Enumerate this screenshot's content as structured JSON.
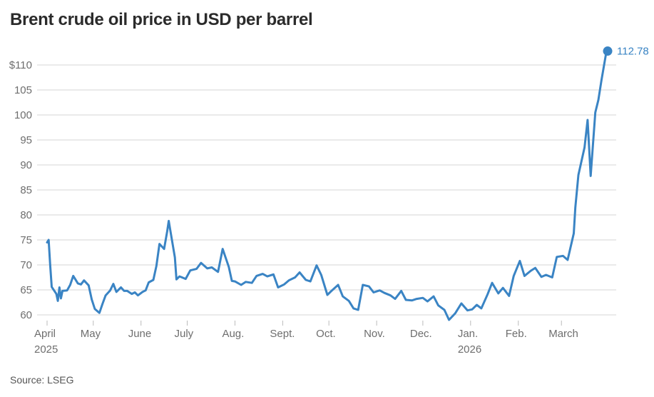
{
  "chart_data": {
    "type": "line",
    "title": "Brent crude oil price in USD per barrel",
    "source": "Source: LSEG",
    "ylim": [
      59,
      113
    ],
    "y_ticks": [
      {
        "value": 110,
        "label": "$110"
      },
      {
        "value": 105,
        "label": "105"
      },
      {
        "value": 100,
        "label": "100"
      },
      {
        "value": 95,
        "label": "95"
      },
      {
        "value": 90,
        "label": "90"
      },
      {
        "value": 85,
        "label": "85"
      },
      {
        "value": 80,
        "label": "80"
      },
      {
        "value": 75,
        "label": "75"
      },
      {
        "value": 70,
        "label": "70"
      },
      {
        "value": 65,
        "label": "65"
      },
      {
        "value": 60,
        "label": "60"
      }
    ],
    "x_ticks": [
      {
        "date": "2025-04-01",
        "label": "April",
        "year": "2025"
      },
      {
        "date": "2025-05-01",
        "label": "May"
      },
      {
        "date": "2025-06-01",
        "label": "June"
      },
      {
        "date": "2025-07-01",
        "label": "July"
      },
      {
        "date": "2025-08-01",
        "label": "Aug."
      },
      {
        "date": "2025-09-01",
        "label": "Sept."
      },
      {
        "date": "2025-10-01",
        "label": "Oct."
      },
      {
        "date": "2025-11-01",
        "label": "Nov."
      },
      {
        "date": "2025-12-01",
        "label": "Dec."
      },
      {
        "date": "2026-01-01",
        "label": "Jan.",
        "year": "2026"
      },
      {
        "date": "2026-02-01",
        "label": "Feb."
      },
      {
        "date": "2026-03-01",
        "label": "March"
      }
    ],
    "grid": true,
    "series_color": "#3a84c4",
    "end_label": "112.78",
    "series": [
      {
        "x": [
          "2025-04-01",
          "2025-04-02",
          "2025-04-03",
          "2025-04-04",
          "2025-04-07",
          "2025-04-08",
          "2025-04-09",
          "2025-04-10",
          "2025-04-11",
          "2025-04-14",
          "2025-04-16",
          "2025-04-18",
          "2025-04-21",
          "2025-04-23",
          "2025-04-25",
          "2025-04-28",
          "2025-04-30",
          "2025-05-02",
          "2025-05-05",
          "2025-05-07",
          "2025-05-09",
          "2025-05-12",
          "2025-05-14",
          "2025-05-16",
          "2025-05-19",
          "2025-05-21",
          "2025-05-23",
          "2025-05-26",
          "2025-05-28",
          "2025-05-30",
          "2025-06-02",
          "2025-06-04",
          "2025-06-06",
          "2025-06-09",
          "2025-06-11",
          "2025-06-13",
          "2025-06-16",
          "2025-06-18",
          "2025-06-19",
          "2025-06-20",
          "2025-06-23",
          "2025-06-24",
          "2025-06-26",
          "2025-06-30",
          "2025-07-03",
          "2025-07-07",
          "2025-07-10",
          "2025-07-14",
          "2025-07-17",
          "2025-07-21",
          "2025-07-24",
          "2025-07-28",
          "2025-07-30",
          "2025-08-01",
          "2025-08-05",
          "2025-08-08",
          "2025-08-12",
          "2025-08-15",
          "2025-08-19",
          "2025-08-22",
          "2025-08-26",
          "2025-08-29",
          "2025-09-02",
          "2025-09-05",
          "2025-09-09",
          "2025-09-12",
          "2025-09-16",
          "2025-09-19",
          "2025-09-23",
          "2025-09-26",
          "2025-09-30",
          "2025-10-03",
          "2025-10-07",
          "2025-10-10",
          "2025-10-14",
          "2025-10-17",
          "2025-10-20",
          "2025-10-23",
          "2025-10-27",
          "2025-10-30",
          "2025-11-03",
          "2025-11-06",
          "2025-11-10",
          "2025-11-13",
          "2025-11-17",
          "2025-11-20",
          "2025-11-24",
          "2025-11-27",
          "2025-12-01",
          "2025-12-04",
          "2025-12-08",
          "2025-12-11",
          "2025-12-15",
          "2025-12-18",
          "2025-12-22",
          "2025-12-26",
          "2025-12-30",
          "2026-01-02",
          "2026-01-05",
          "2026-01-08",
          "2026-01-12",
          "2026-01-15",
          "2026-01-19",
          "2026-01-22",
          "2026-01-26",
          "2026-01-29",
          "2026-02-02",
          "2026-02-05",
          "2026-02-09",
          "2026-02-12",
          "2026-02-16",
          "2026-02-19",
          "2026-02-23",
          "2026-02-26",
          "2026-03-02",
          "2026-03-05",
          "2026-03-09",
          "2026-03-10",
          "2026-03-12",
          "2026-03-16",
          "2026-03-18",
          "2026-03-20",
          "2026-03-23",
          "2026-03-25",
          "2026-03-27",
          "2026-03-30",
          "2026-03-31"
        ],
        "y": [
          74.5,
          75.0,
          70.1,
          65.6,
          64.2,
          62.8,
          65.5,
          63.3,
          64.8,
          64.9,
          66.0,
          67.8,
          66.3,
          66.1,
          66.9,
          65.9,
          63.1,
          61.2,
          60.4,
          62.2,
          63.9,
          64.9,
          66.2,
          64.6,
          65.5,
          64.8,
          64.8,
          64.2,
          64.5,
          63.9,
          64.6,
          64.9,
          66.5,
          67.0,
          69.8,
          74.2,
          73.2,
          76.7,
          78.8,
          77.0,
          71.5,
          67.1,
          67.7,
          67.2,
          68.9,
          69.2,
          70.4,
          69.3,
          69.5,
          68.6,
          73.2,
          69.6,
          66.8,
          66.7,
          66.0,
          66.6,
          66.4,
          67.8,
          68.2,
          67.7,
          68.1,
          65.5,
          66.1,
          66.9,
          67.5,
          68.5,
          67.0,
          66.7,
          69.9,
          68.0,
          64.0,
          64.9,
          66.0,
          63.7,
          62.8,
          61.3,
          61.0,
          66.0,
          65.7,
          64.5,
          64.9,
          64.4,
          63.9,
          63.2,
          64.8,
          63.0,
          62.9,
          63.2,
          63.4,
          62.7,
          63.7,
          61.9,
          61.0,
          59.0,
          60.3,
          62.3,
          60.9,
          61.1,
          62.0,
          61.3,
          64.1,
          66.4,
          64.3,
          65.4,
          63.8,
          67.8,
          70.8,
          67.8,
          68.8,
          69.4,
          67.6,
          68.0,
          67.5,
          71.6,
          71.8,
          71.0,
          76.3,
          81.5,
          88.0,
          93.5,
          99.0,
          87.8,
          100.5,
          103.0,
          107.0,
          112.3,
          112.78
        ]
      }
    ]
  }
}
